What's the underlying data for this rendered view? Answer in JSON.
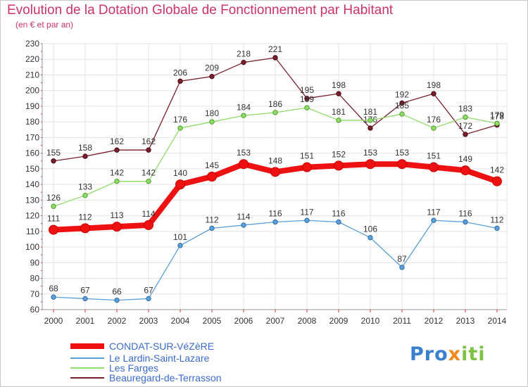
{
  "title": "Evolution de la Dotation Globale de Fonctionnement par Habitant",
  "subtitle": "(en € et par an)",
  "logo": {
    "text": "Proxiti"
  },
  "chart_data": {
    "type": "line",
    "title": "Evolution de la Dotation Globale de Fonctionnement par Habitant",
    "subtitle": "(en € et par an)",
    "xlabel": "",
    "ylabel": "",
    "ylim": [
      60,
      230
    ],
    "yticks": [
      60,
      70,
      80,
      90,
      100,
      110,
      120,
      130,
      140,
      150,
      160,
      170,
      180,
      190,
      200,
      210,
      220,
      230
    ],
    "grid": true,
    "legend_position": "bottom-left",
    "categories": [
      "2000",
      "2001",
      "2002",
      "2003",
      "2004",
      "2005",
      "2006",
      "2007",
      "2008",
      "2009",
      "2010",
      "2011",
      "2012",
      "2013",
      "2014"
    ],
    "series": [
      {
        "name": "Beauregard-de-Terrasson",
        "color": "#7a1f2b",
        "values": [
          155,
          158,
          162,
          162,
          206,
          209,
          218,
          221,
          195,
          198,
          176,
          192,
          198,
          172,
          178
        ],
        "labels": [
          "155",
          "158",
          "162",
          "162",
          "206",
          "209",
          "218",
          "221",
          "195",
          "198",
          "176",
          "192",
          "198",
          "172",
          "178"
        ]
      },
      {
        "name": "Les Farges",
        "color": "#8fdc6a",
        "values": [
          126,
          133,
          142,
          142,
          176,
          180,
          184,
          186,
          189,
          181,
          181,
          185,
          176,
          183,
          179
        ],
        "labels": [
          "126",
          "133",
          "142",
          "142",
          "176",
          "180",
          "184",
          "186",
          "189",
          "181",
          "181",
          "185",
          "176",
          "183",
          "179"
        ]
      },
      {
        "name": "Le Lardin-Saint-Lazare",
        "color": "#5b9fd6",
        "values": [
          68,
          67,
          66,
          67,
          101,
          112,
          114,
          116,
          117,
          116,
          106,
          87,
          117,
          116,
          112
        ],
        "labels": [
          "68",
          "67",
          "66",
          "67",
          "101",
          "112",
          "114",
          "116",
          "117",
          "116",
          "106",
          "87",
          "117",
          "116",
          "112"
        ]
      },
      {
        "name": "CONDAT-SUR-VéZèRE",
        "color": "#ee1111",
        "values": [
          111,
          112,
          113,
          114,
          140,
          145,
          153,
          148,
          151,
          152,
          153,
          153,
          151,
          149,
          142
        ],
        "labels": [
          "111",
          "112",
          "113",
          "114",
          "140",
          "145",
          "153",
          "148",
          "151",
          "152",
          "153",
          "153",
          "151",
          "149",
          "142"
        ]
      }
    ],
    "legend": [
      "CONDAT-SUR-VéZèRE",
      "Le Lardin-Saint-Lazare",
      "Les Farges",
      "Beauregard-de-Terrasson"
    ]
  }
}
